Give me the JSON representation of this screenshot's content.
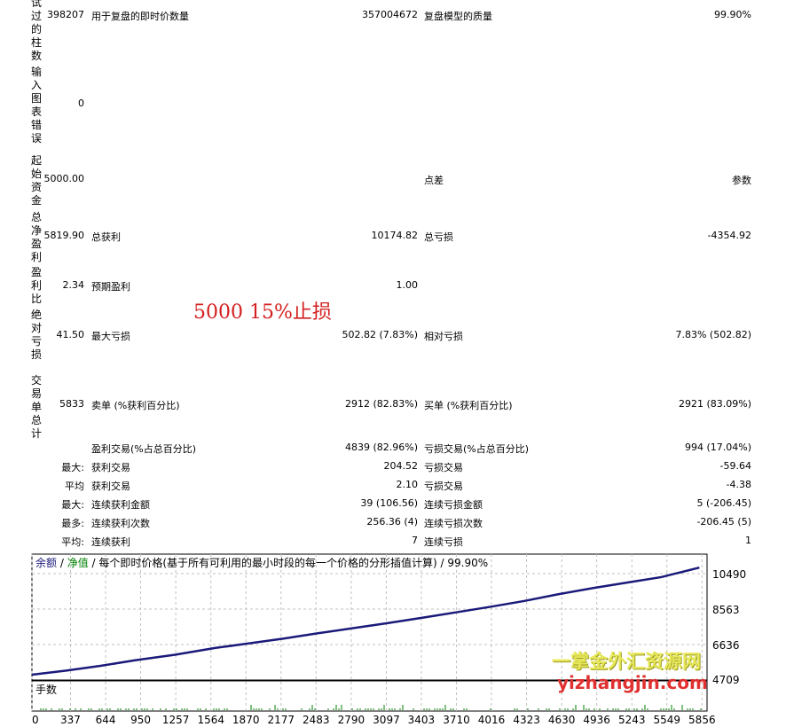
{
  "side_labels": [
    "试过的柱数",
    "输入图表错误",
    "起始资金",
    "总净盈利",
    "盈利比",
    "绝对亏损",
    "交易单总计"
  ],
  "rows": [
    {
      "v1": "398207",
      "l2": "用于复盘的即时价数量",
      "v2": "357004672",
      "l3": "复盘模型的质量",
      "v3": "99.90%"
    },
    {
      "v1": "0",
      "l2": "",
      "v2": "",
      "l3": "",
      "v3": ""
    },
    {
      "v1": "5000.00",
      "l2": "",
      "v2": "",
      "l3": "点差",
      "v3": "参数"
    },
    {
      "v1": "5819.90",
      "l2": "总获利",
      "v2": "10174.82",
      "l3": "总亏损",
      "v3": "-4354.92"
    },
    {
      "v1": "2.34",
      "l2": "预期盈利",
      "v2": "1.00",
      "l3": "",
      "v3": ""
    },
    {
      "v1": "41.50",
      "l2": "最大亏损",
      "v2": "502.82 (7.83%)",
      "l3": "相对亏损",
      "v3": "7.83% (502.82)"
    },
    {
      "v1": "5833",
      "l2": "卖单 (%获利百分比)",
      "v2": "2912 (82.83%)",
      "l3": "买单 (%获利百分比)",
      "v3": "2921 (83.09%)"
    },
    {
      "v1": "",
      "l2": "盈利交易(%占总百分比)",
      "v2": "4839 (82.96%)",
      "l3": "亏损交易(%占总百分比)",
      "v3": "994 (17.04%)"
    },
    {
      "v1": "最大:",
      "l2": "获利交易",
      "v2": "204.52",
      "l3": "亏损交易",
      "v3": "-59.64"
    },
    {
      "v1": "平均",
      "l2": "获利交易",
      "v2": "2.10",
      "l3": "亏损交易",
      "v3": "-4.38"
    },
    {
      "v1": "最大:",
      "l2": "连续获利金额",
      "v2": "39 (106.56)",
      "l3": "连续亏损金额",
      "v3": "5 (-206.45)"
    },
    {
      "v1": "最多:",
      "l2": "连续获利次数",
      "v2": "256.36 (4)",
      "l3": "连续亏损次数",
      "v3": "-206.45 (5)"
    },
    {
      "v1": "平均:",
      "l2": "连续获利",
      "v2": "7",
      "l3": "连续亏损",
      "v3": "1"
    }
  ],
  "note": "5000  15%止损",
  "chart_data": {
    "type": "line",
    "legend": {
      "balance": "余额",
      "sep": " / ",
      "equity": "净值",
      "desc": " / 每个即时价格(基于所有可利用的最小时段的每一个价格的分形插值计算) / 99.90%"
    },
    "y_ticks": [
      10490,
      8563,
      6636,
      4709
    ],
    "x_ticks": [
      0,
      337,
      644,
      950,
      1257,
      1564,
      1870,
      2177,
      2483,
      2790,
      3097,
      3403,
      3710,
      4016,
      4323,
      4630,
      4936,
      5243,
      5549,
      5856
    ],
    "ylim": [
      4709,
      11200
    ],
    "xlim": [
      0,
      5900
    ],
    "series": [
      {
        "name": "余额",
        "color": "#1a1a7a",
        "x": [
          0,
          300,
          600,
          900,
          1250,
          1600,
          1900,
          2200,
          2500,
          2800,
          3100,
          3400,
          3700,
          4000,
          4300,
          4600,
          4900,
          5200,
          5500,
          5833
        ],
        "y": [
          5000,
          5220,
          5480,
          5780,
          6080,
          6450,
          6700,
          6960,
          7250,
          7520,
          7790,
          8080,
          8380,
          8680,
          9000,
          9370,
          9700,
          10000,
          10300,
          10820
        ]
      }
    ],
    "volume_label": "手数",
    "colors": {
      "balance": "#1a1a7a",
      "equity": "#008000",
      "grid": "#c0c0c0"
    }
  },
  "watermark": {
    "line1": "一掌金外汇资源网",
    "line2": "yizhangjin.com"
  }
}
